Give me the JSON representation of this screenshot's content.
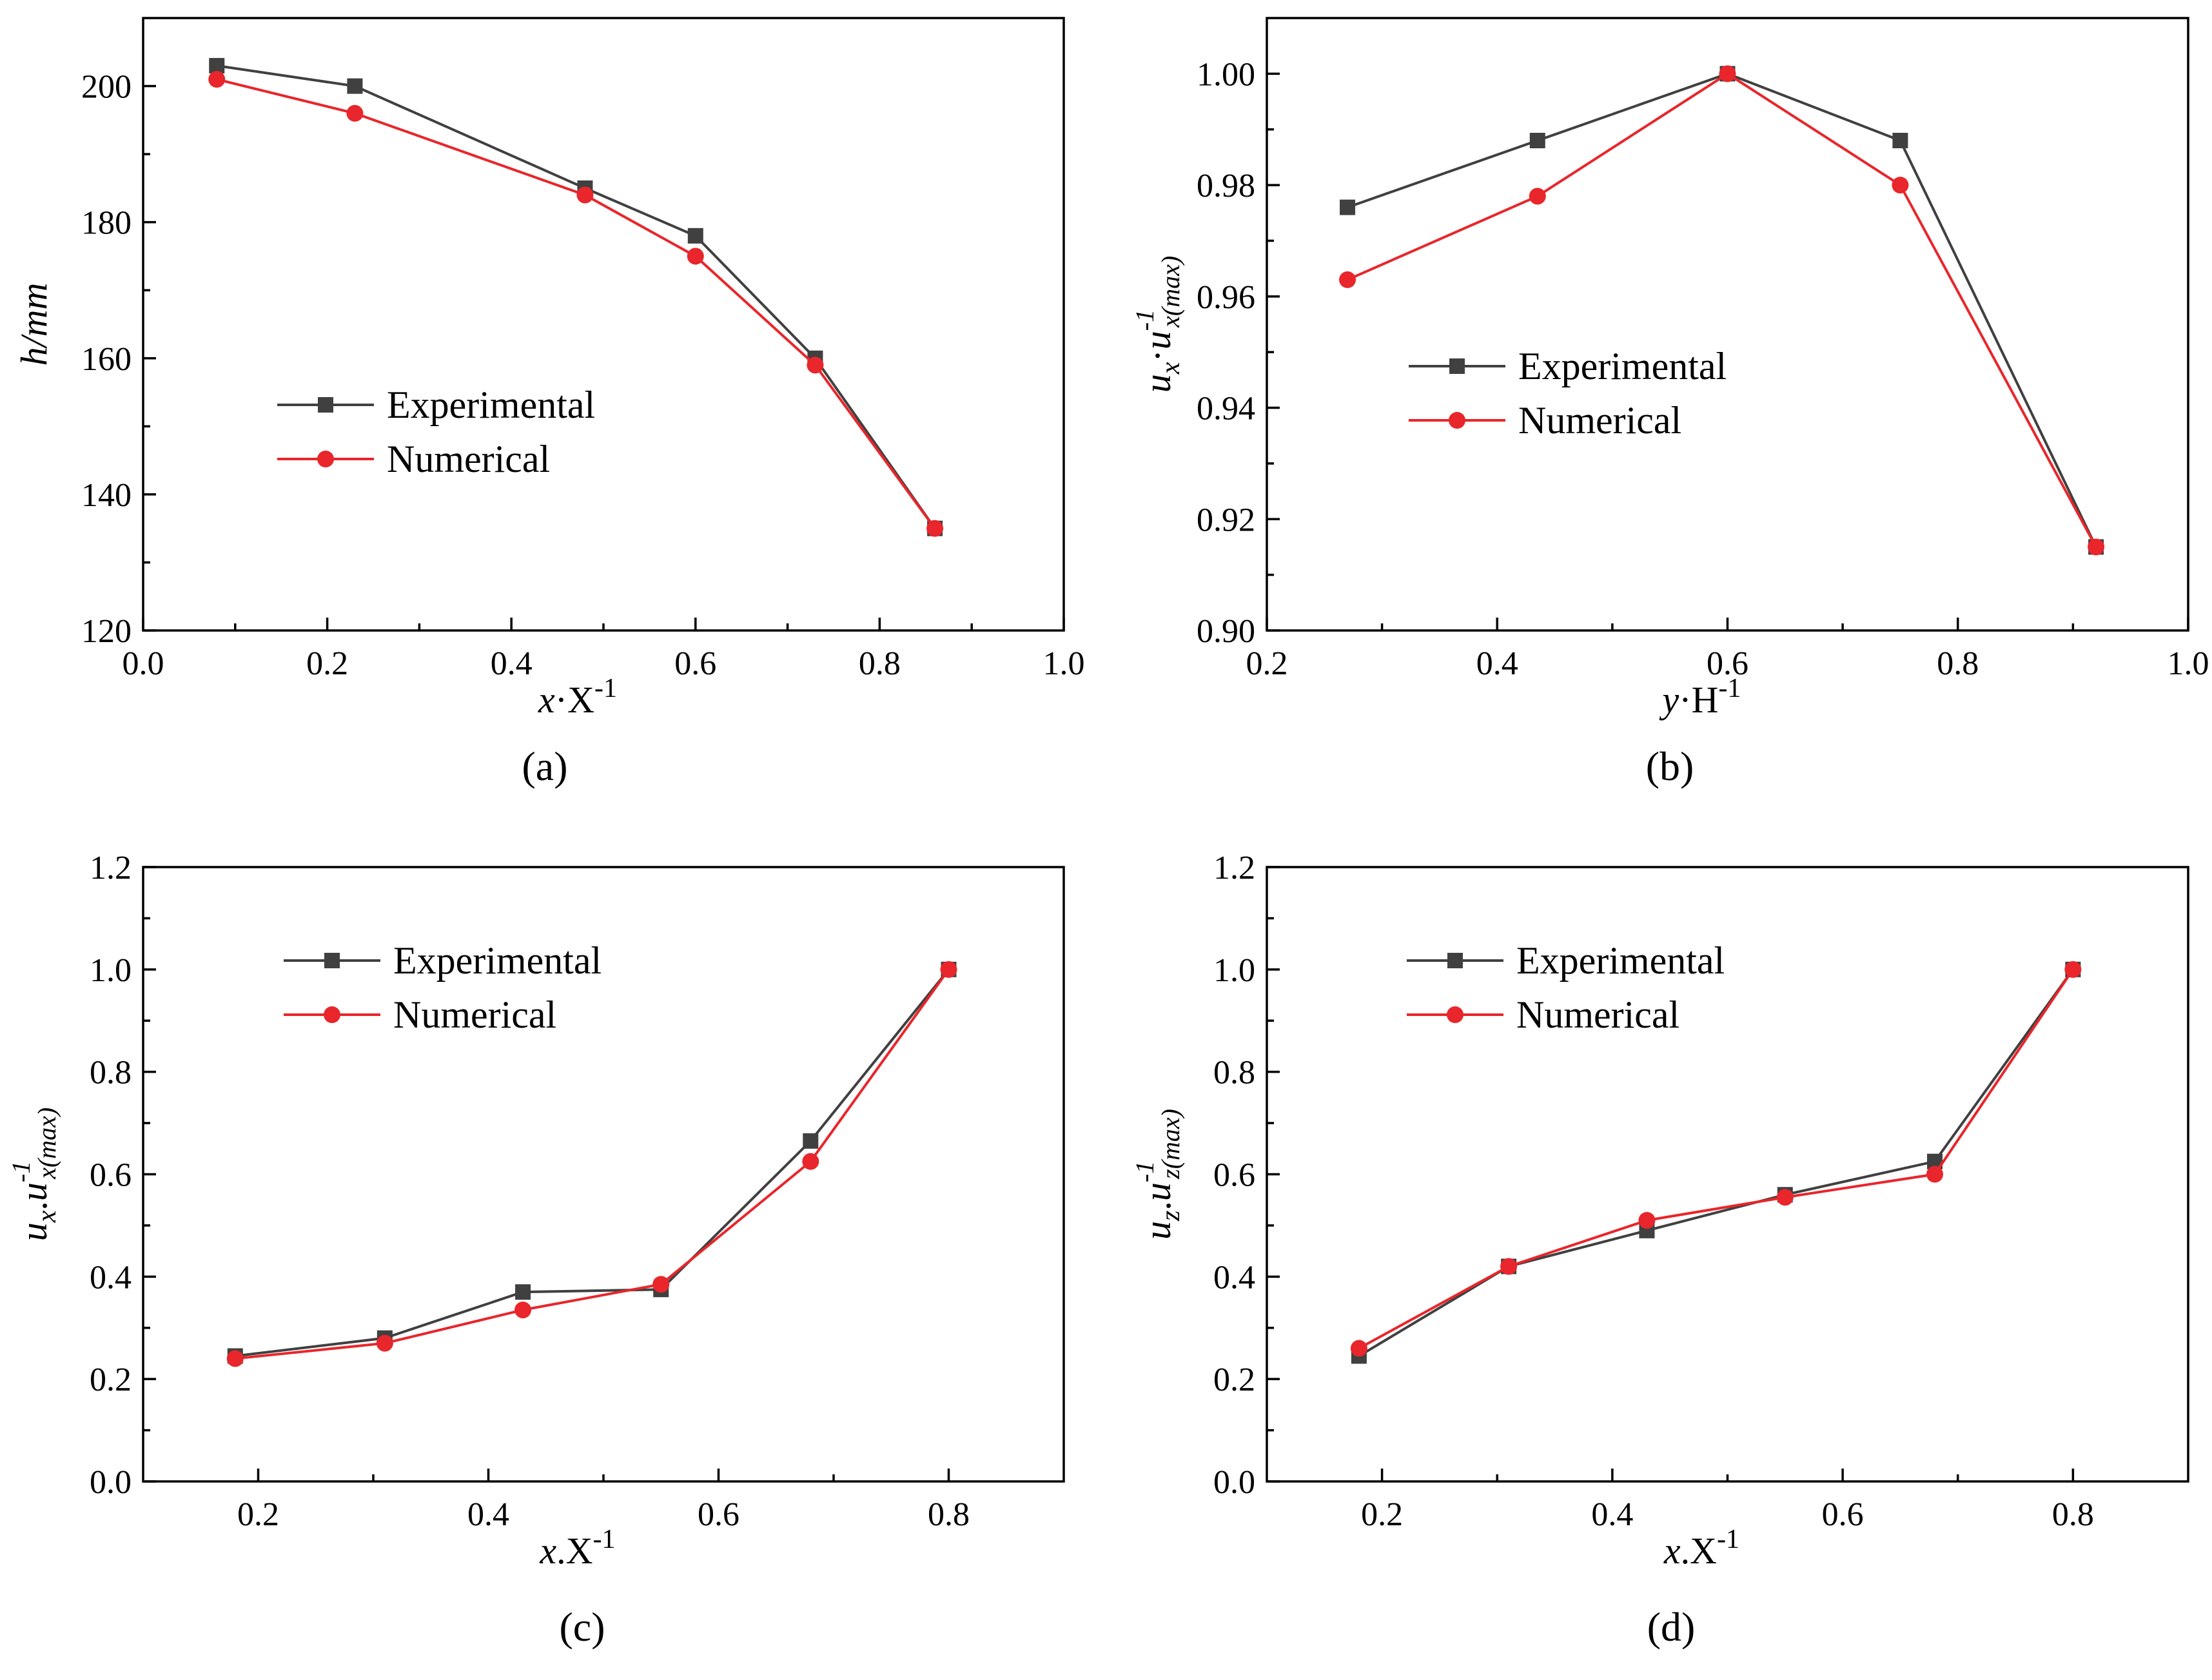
{
  "colors": {
    "experimental": "#404040",
    "numerical": "#e8262b"
  },
  "chart_data": [
    {
      "id": "a",
      "type": "line",
      "panel_label": "(a)",
      "xlabel": {
        "var": "x",
        "sep": "·",
        "rest": "X",
        "sup": "-1"
      },
      "ylabel": {
        "var": "h/mm"
      },
      "xlim": [
        0.0,
        1.0
      ],
      "ylim": [
        120,
        210
      ],
      "xticks": [
        0.0,
        0.2,
        0.4,
        0.6,
        0.8,
        1.0
      ],
      "xtick_labels": [
        "0.0",
        "0.2",
        "0.4",
        "0.6",
        "0.8",
        "1.0"
      ],
      "yticks": [
        120,
        140,
        160,
        180,
        200
      ],
      "ytick_labels": [
        "120",
        "140",
        "160",
        "180",
        "200"
      ],
      "legend": [
        "Experimental",
        "Numerical"
      ],
      "series": [
        {
          "name": "Experimental",
          "marker": "square",
          "x": [
            0.08,
            0.23,
            0.48,
            0.6,
            0.73,
            0.86
          ],
          "y": [
            203,
            200,
            185,
            178,
            160,
            135
          ]
        },
        {
          "name": "Numerical",
          "marker": "circle",
          "x": [
            0.08,
            0.23,
            0.48,
            0.6,
            0.73,
            0.86
          ],
          "y": [
            201,
            196,
            184,
            175,
            159,
            135
          ]
        }
      ]
    },
    {
      "id": "b",
      "type": "line",
      "panel_label": "(b)",
      "xlabel": {
        "var": "y",
        "sep": "·",
        "rest": "H",
        "sup": "-1"
      },
      "ylabel": {
        "var": "u",
        "sub": "x",
        "sep": "·",
        "var2": "u",
        "sup2": "-1",
        "sub2": "x(max)"
      },
      "xlim": [
        0.2,
        1.0
      ],
      "ylim": [
        0.9,
        1.01
      ],
      "xticks": [
        0.2,
        0.4,
        0.6,
        0.8,
        1.0
      ],
      "xtick_labels": [
        "0.2",
        "0.4",
        "0.6",
        "0.8",
        "1.0"
      ],
      "yticks": [
        0.9,
        0.92,
        0.94,
        0.96,
        0.98,
        1.0
      ],
      "ytick_labels": [
        "0.90",
        "0.92",
        "0.94",
        "0.96",
        "0.98",
        "1.00"
      ],
      "legend": [
        "Experimental",
        "Numerical"
      ],
      "series": [
        {
          "name": "Experimental",
          "marker": "square",
          "x": [
            0.27,
            0.435,
            0.6,
            0.75,
            0.92
          ],
          "y": [
            0.976,
            0.988,
            1.0,
            0.988,
            0.915
          ]
        },
        {
          "name": "Numerical",
          "marker": "circle",
          "x": [
            0.27,
            0.435,
            0.6,
            0.75,
            0.92
          ],
          "y": [
            0.963,
            0.978,
            1.0,
            0.98,
            0.915
          ]
        }
      ]
    },
    {
      "id": "c",
      "type": "line",
      "panel_label": "(c)",
      "xlabel": {
        "var": "x",
        "sep": ".",
        "rest": "X",
        "sup": "-1"
      },
      "ylabel": {
        "var": "u",
        "sub": "x",
        "sep": ".",
        "var2": "u",
        "sup2": "-1",
        "sub2": "x(max)"
      },
      "xlim": [
        0.1,
        0.9
      ],
      "ylim": [
        0.0,
        1.2
      ],
      "xticks": [
        0.2,
        0.4,
        0.6,
        0.8
      ],
      "xtick_labels": [
        "0.2",
        "0.4",
        "0.6",
        "0.8"
      ],
      "yticks": [
        0.0,
        0.2,
        0.4,
        0.6,
        0.8,
        1.0,
        1.2
      ],
      "ytick_labels": [
        "0.0",
        "0.2",
        "0.4",
        "0.6",
        "0.8",
        "1.0",
        "1.2"
      ],
      "legend": [
        "Experimental",
        "Numerical"
      ],
      "series": [
        {
          "name": "Experimental",
          "marker": "square",
          "x": [
            0.18,
            0.31,
            0.43,
            0.55,
            0.68,
            0.8
          ],
          "y": [
            0.245,
            0.28,
            0.37,
            0.375,
            0.665,
            1.0
          ]
        },
        {
          "name": "Numerical",
          "marker": "circle",
          "x": [
            0.18,
            0.31,
            0.43,
            0.55,
            0.68,
            0.8
          ],
          "y": [
            0.24,
            0.27,
            0.335,
            0.385,
            0.625,
            1.0
          ]
        }
      ]
    },
    {
      "id": "d",
      "type": "line",
      "panel_label": "(d)",
      "xlabel": {
        "var": "x",
        "sep": ".",
        "rest": "X",
        "sup": "-1"
      },
      "ylabel": {
        "var": "u",
        "sub": "z",
        "sep": ".",
        "var2": "u",
        "sup2": "-1",
        "sub2": "z(max)"
      },
      "xlim": [
        0.1,
        0.9
      ],
      "ylim": [
        0.0,
        1.2
      ],
      "xticks": [
        0.2,
        0.4,
        0.6,
        0.8
      ],
      "xtick_labels": [
        "0.2",
        "0.4",
        "0.6",
        "0.8"
      ],
      "yticks": [
        0.0,
        0.2,
        0.4,
        0.6,
        0.8,
        1.0,
        1.2
      ],
      "ytick_labels": [
        "0.0",
        "0.2",
        "0.4",
        "0.6",
        "0.8",
        "1.0",
        "1.2"
      ],
      "legend": [
        "Experimental",
        "Numerical"
      ],
      "series": [
        {
          "name": "Experimental",
          "marker": "square",
          "x": [
            0.18,
            0.31,
            0.43,
            0.55,
            0.68,
            0.8
          ],
          "y": [
            0.245,
            0.42,
            0.49,
            0.56,
            0.625,
            1.0
          ]
        },
        {
          "name": "Numerical",
          "marker": "circle",
          "x": [
            0.18,
            0.31,
            0.43,
            0.55,
            0.68,
            0.8
          ],
          "y": [
            0.26,
            0.42,
            0.51,
            0.555,
            0.6,
            1.0
          ]
        }
      ]
    }
  ]
}
